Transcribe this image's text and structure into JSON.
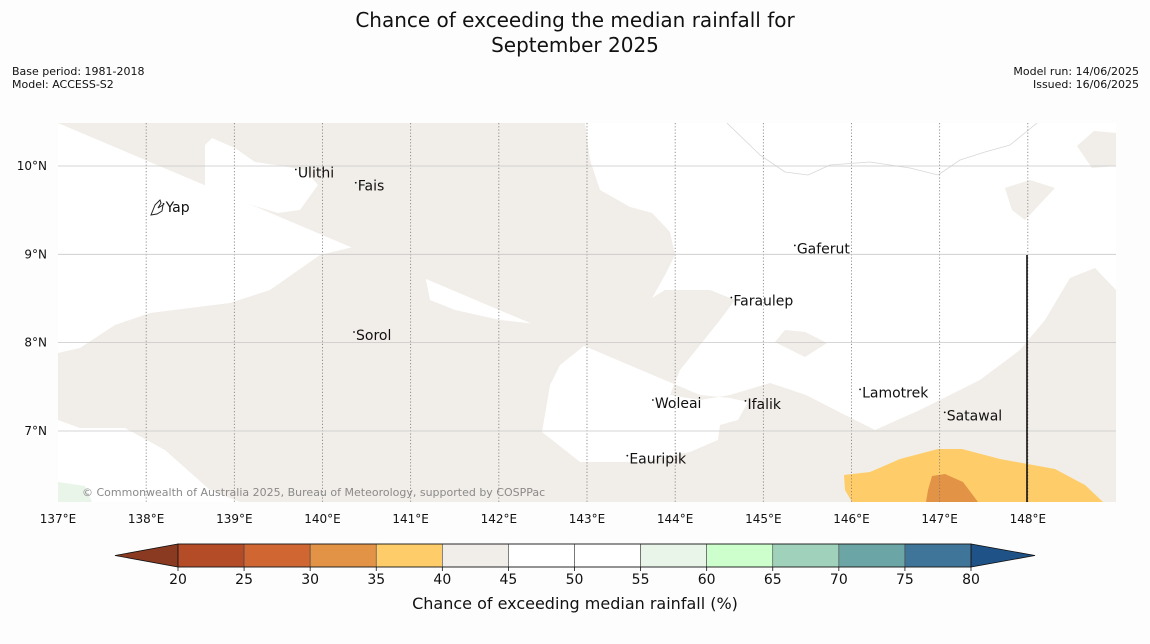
{
  "title": {
    "line1": "Chance of exceeding the median rainfall for",
    "line2": "September 2025"
  },
  "meta_left": {
    "base_period": "Base period: 1981-2018",
    "model": "Model: ACCESS-S2"
  },
  "meta_right": {
    "model_run": "Model run: 14/06/2025",
    "issued": "Issued: 16/06/2025"
  },
  "map": {
    "lon_range": [
      137,
      149
    ],
    "lat_range": [
      6.2,
      10.5
    ],
    "lon_ticks": [
      "137°E",
      "138°E",
      "139°E",
      "140°E",
      "141°E",
      "142°E",
      "143°E",
      "144°E",
      "145°E",
      "146°E",
      "147°E",
      "148°E"
    ],
    "lat_ticks": [
      "10°N",
      "9°N",
      "8°N",
      "7°N"
    ],
    "places": [
      {
        "name": "Yap",
        "lon": 138.22,
        "lat": 9.48
      },
      {
        "name": "Ulithi",
        "lon": 139.72,
        "lat": 9.87
      },
      {
        "name": "Fais",
        "lon": 140.4,
        "lat": 9.72
      },
      {
        "name": "Gaferut",
        "lon": 145.38,
        "lat": 9.01
      },
      {
        "name": "Faraulep",
        "lon": 144.66,
        "lat": 8.42
      },
      {
        "name": "Sorol",
        "lon": 140.38,
        "lat": 8.03
      },
      {
        "name": "Lamotrek",
        "lon": 146.12,
        "lat": 7.38
      },
      {
        "name": "Woleai",
        "lon": 143.77,
        "lat": 7.26
      },
      {
        "name": "Ifalik",
        "lon": 144.82,
        "lat": 7.25
      },
      {
        "name": "Satawal",
        "lon": 147.08,
        "lat": 7.12
      },
      {
        "name": "Eauripik",
        "lon": 143.48,
        "lat": 6.63
      }
    ],
    "copyright": "© Commonwealth of Australia 2025, Bureau of Meteorology, supported by COSPPac"
  },
  "colorbar": {
    "ticks": [
      "20",
      "25",
      "30",
      "35",
      "40",
      "45",
      "50",
      "55",
      "60",
      "65",
      "70",
      "75",
      "80"
    ],
    "low_extend_color": "#8b3a22",
    "high_extend_color": "#1f5286",
    "bins": [
      {
        "range": "20-25",
        "color": "#b54c28"
      },
      {
        "range": "25-30",
        "color": "#d06632"
      },
      {
        "range": "30-35",
        "color": "#e39345"
      },
      {
        "range": "35-40",
        "color": "#fecd69"
      },
      {
        "range": "40-45",
        "color": "#f1ede8"
      },
      {
        "range": "45-50",
        "color": "#ffffff"
      },
      {
        "range": "50-55",
        "color": "#ffffff"
      },
      {
        "range": "55-60",
        "color": "#e9f5e8"
      },
      {
        "range": "60-65",
        "color": "#ccffcc"
      },
      {
        "range": "65-70",
        "color": "#9fd1bb"
      },
      {
        "range": "70-75",
        "color": "#6ca5a5"
      },
      {
        "range": "75-80",
        "color": "#3f7598"
      }
    ],
    "caption": "Chance of exceeding median rainfall (%)"
  }
}
